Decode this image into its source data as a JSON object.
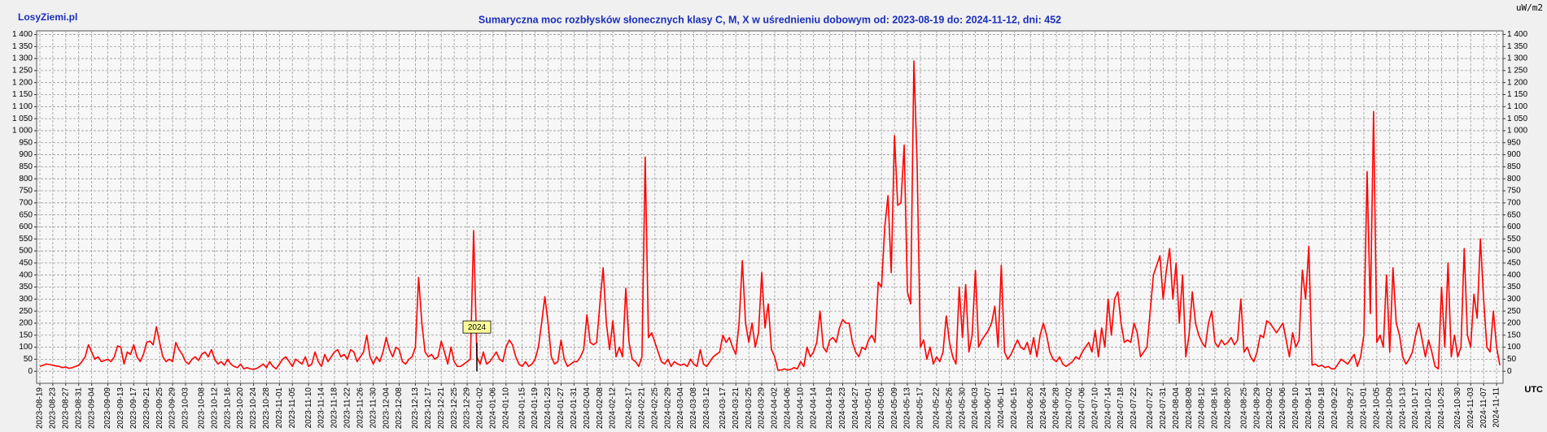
{
  "site": "LosyZiemi.pl",
  "unit": "uW/m2",
  "timezone": "UTC",
  "chart_data": {
    "type": "line",
    "title": "Sumaryczna moc rozbłysków słonecznych klasy C, M, X w uśrednieniu dobowym od: 2023-08-19 do: 2024-11-12, dni: 452",
    "annotations": [
      {
        "text": "2024",
        "x": "2024-01-01"
      }
    ],
    "xlim": [
      "2023-08-18",
      "2024-11-13"
    ],
    "ylim": [
      -50,
      1415
    ],
    "grid": true,
    "x": [
      "2023-08-19",
      "2023-08-20",
      "2023-08-21",
      "2023-08-22",
      "2023-08-23",
      "2023-08-24",
      "2023-08-25",
      "2023-08-26",
      "2023-08-27",
      "2023-08-28",
      "2023-08-29",
      "2023-08-30",
      "2023-08-31",
      "2023-09-01",
      "2023-09-02",
      "2023-09-03",
      "2023-09-04",
      "2023-09-05",
      "2023-09-06",
      "2023-09-07",
      "2023-09-08",
      "2023-09-09",
      "2023-09-10",
      "2023-09-11",
      "2023-09-12",
      "2023-09-13",
      "2023-09-14",
      "2023-09-15",
      "2023-09-16",
      "2023-09-17",
      "2023-09-18",
      "2023-09-19",
      "2023-09-20",
      "2023-09-21",
      "2023-09-22",
      "2023-09-23",
      "2023-09-24",
      "2023-09-25",
      "2023-09-26",
      "2023-09-27",
      "2023-09-28",
      "2023-09-29",
      "2023-09-30",
      "2023-10-01",
      "2023-10-02",
      "2023-10-03",
      "2023-10-04",
      "2023-10-05",
      "2023-10-06",
      "2023-10-07",
      "2023-10-08",
      "2023-10-09",
      "2023-10-10",
      "2023-10-11",
      "2023-10-12",
      "2023-10-13",
      "2023-10-14",
      "2023-10-15",
      "2023-10-16",
      "2023-10-17",
      "2023-10-18",
      "2023-10-19",
      "2023-10-20",
      "2023-10-21",
      "2023-10-22",
      "2023-10-23",
      "2023-10-24",
      "2023-10-25",
      "2023-10-26",
      "2023-10-27",
      "2023-10-28",
      "2023-10-29",
      "2023-10-30",
      "2023-10-31",
      "2023-11-01",
      "2023-11-02",
      "2023-11-03",
      "2023-11-04",
      "2023-11-05",
      "2023-11-06",
      "2023-11-07",
      "2023-11-08",
      "2023-11-09",
      "2023-11-10",
      "2023-11-11",
      "2023-11-12",
      "2023-11-13",
      "2023-11-14",
      "2023-11-15",
      "2023-11-16",
      "2023-11-17",
      "2023-11-18",
      "2023-11-19",
      "2023-11-20",
      "2023-11-21",
      "2023-11-22",
      "2023-11-23",
      "2023-11-24",
      "2023-11-25",
      "2023-11-26",
      "2023-11-27",
      "2023-11-28",
      "2023-11-29",
      "2023-11-30",
      "2023-12-01",
      "2023-12-02",
      "2023-12-03",
      "2023-12-04",
      "2023-12-05",
      "2023-12-06",
      "2023-12-07",
      "2023-12-08",
      "2023-12-09",
      "2023-12-10",
      "2023-12-11",
      "2023-12-12",
      "2023-12-13",
      "2023-12-14",
      "2023-12-15",
      "2023-12-16",
      "2023-12-17",
      "2023-12-18",
      "2023-12-19",
      "2023-12-20",
      "2023-12-21",
      "2023-12-22",
      "2023-12-23",
      "2023-12-24",
      "2023-12-25",
      "2023-12-26",
      "2023-12-27",
      "2023-12-28",
      "2023-12-29",
      "2023-12-30",
      "2023-12-31",
      "2024-01-01",
      "2024-01-02",
      "2024-01-03",
      "2024-01-04",
      "2024-01-05",
      "2024-01-06",
      "2024-01-07",
      "2024-01-08",
      "2024-01-09",
      "2024-01-10",
      "2024-01-11",
      "2024-01-12",
      "2024-01-13",
      "2024-01-14",
      "2024-01-15",
      "2024-01-16",
      "2024-01-17",
      "2024-01-18",
      "2024-01-19",
      "2024-01-20",
      "2024-01-21",
      "2024-01-22",
      "2024-01-23",
      "2024-01-24",
      "2024-01-25",
      "2024-01-26",
      "2024-01-27",
      "2024-01-28",
      "2024-01-29",
      "2024-01-30",
      "2024-01-31",
      "2024-02-01",
      "2024-02-02",
      "2024-02-03",
      "2024-02-04",
      "2024-02-05",
      "2024-02-06",
      "2024-02-07",
      "2024-02-08",
      "2024-02-09",
      "2024-02-10",
      "2024-02-11",
      "2024-02-12",
      "2024-02-13",
      "2024-02-14",
      "2024-02-15",
      "2024-02-16",
      "2024-02-17",
      "2024-02-18",
      "2024-02-19",
      "2024-02-20",
      "2024-02-21",
      "2024-02-22",
      "2024-02-23",
      "2024-02-24",
      "2024-02-25",
      "2024-02-26",
      "2024-02-27",
      "2024-02-28",
      "2024-02-29",
      "2024-03-01",
      "2024-03-02",
      "2024-03-03",
      "2024-03-04",
      "2024-03-05",
      "2024-03-06",
      "2024-03-07",
      "2024-03-08",
      "2024-03-09",
      "2024-03-10",
      "2024-03-11",
      "2024-03-12",
      "2024-03-13",
      "2024-03-14",
      "2024-03-15",
      "2024-03-16",
      "2024-03-17",
      "2024-03-18",
      "2024-03-19",
      "2024-03-20",
      "2024-03-21",
      "2024-03-22",
      "2024-03-23",
      "2024-03-24",
      "2024-03-25",
      "2024-03-26",
      "2024-03-27",
      "2024-03-28",
      "2024-03-29",
      "2024-03-30",
      "2024-03-31",
      "2024-04-01",
      "2024-04-02",
      "2024-04-03",
      "2024-04-04",
      "2024-04-05",
      "2024-04-06",
      "2024-04-07",
      "2024-04-08",
      "2024-04-09",
      "2024-04-10",
      "2024-04-11",
      "2024-04-12",
      "2024-04-13",
      "2024-04-14",
      "2024-04-15",
      "2024-04-16",
      "2024-04-17",
      "2024-04-18",
      "2024-04-19",
      "2024-04-20",
      "2024-04-21",
      "2024-04-22",
      "2024-04-23",
      "2024-04-24",
      "2024-04-25",
      "2024-04-26",
      "2024-04-27",
      "2024-04-28",
      "2024-04-29",
      "2024-04-30",
      "2024-05-01",
      "2024-05-02",
      "2024-05-03",
      "2024-05-04",
      "2024-05-05",
      "2024-05-06",
      "2024-05-07",
      "2024-05-08",
      "2024-05-09",
      "2024-05-10",
      "2024-05-11",
      "2024-05-12",
      "2024-05-13",
      "2024-05-14",
      "2024-05-15",
      "2024-05-16",
      "2024-05-17",
      "2024-05-18",
      "2024-05-19",
      "2024-05-20",
      "2024-05-21",
      "2024-05-22",
      "2024-05-23",
      "2024-05-24",
      "2024-05-25",
      "2024-05-26",
      "2024-05-27",
      "2024-05-28",
      "2024-05-29",
      "2024-05-30",
      "2024-05-31",
      "2024-06-01",
      "2024-06-02",
      "2024-06-03",
      "2024-06-04",
      "2024-06-05",
      "2024-06-06",
      "2024-06-07",
      "2024-06-08",
      "2024-06-09",
      "2024-06-10",
      "2024-06-11",
      "2024-06-12",
      "2024-06-13",
      "2024-06-14",
      "2024-06-15",
      "2024-06-16",
      "2024-06-17",
      "2024-06-18",
      "2024-06-19",
      "2024-06-20",
      "2024-06-21",
      "2024-06-22",
      "2024-06-23",
      "2024-06-24",
      "2024-06-25",
      "2024-06-26",
      "2024-06-27",
      "2024-06-28",
      "2024-06-29",
      "2024-06-30",
      "2024-07-01",
      "2024-07-02",
      "2024-07-03",
      "2024-07-04",
      "2024-07-05",
      "2024-07-06",
      "2024-07-07",
      "2024-07-08",
      "2024-07-09",
      "2024-07-10",
      "2024-07-11",
      "2024-07-12",
      "2024-07-13",
      "2024-07-14",
      "2024-07-15",
      "2024-07-16",
      "2024-07-17",
      "2024-07-18",
      "2024-07-19",
      "2024-07-20",
      "2024-07-21",
      "2024-07-22",
      "2024-07-23",
      "2024-07-24",
      "2024-07-25",
      "2024-07-26",
      "2024-07-27",
      "2024-07-28",
      "2024-07-29",
      "2024-07-30",
      "2024-07-31",
      "2024-08-01",
      "2024-08-02",
      "2024-08-03",
      "2024-08-04",
      "2024-08-05",
      "2024-08-06",
      "2024-08-07",
      "2024-08-08",
      "2024-08-09",
      "2024-08-10",
      "2024-08-11",
      "2024-08-12",
      "2024-08-13",
      "2024-08-14",
      "2024-08-15",
      "2024-08-16",
      "2024-08-17",
      "2024-08-18",
      "2024-08-19",
      "2024-08-20",
      "2024-08-21",
      "2024-08-22",
      "2024-08-23",
      "2024-08-24",
      "2024-08-25",
      "2024-08-26",
      "2024-08-27",
      "2024-08-28",
      "2024-08-29",
      "2024-08-30",
      "2024-08-31",
      "2024-09-01",
      "2024-09-02",
      "2024-09-03",
      "2024-09-04",
      "2024-09-05",
      "2024-09-06",
      "2024-09-07",
      "2024-09-08",
      "2024-09-09",
      "2024-09-10",
      "2024-09-11",
      "2024-09-12",
      "2024-09-13",
      "2024-09-14",
      "2024-09-15",
      "2024-09-16",
      "2024-09-17",
      "2024-09-18",
      "2024-09-19",
      "2024-09-20",
      "2024-09-21",
      "2024-09-22",
      "2024-09-23",
      "2024-09-24",
      "2024-09-25",
      "2024-09-26",
      "2024-09-27",
      "2024-09-28",
      "2024-09-29",
      "2024-09-30",
      "2024-10-01",
      "2024-10-02",
      "2024-10-03",
      "2024-10-04",
      "2024-10-05",
      "2024-10-06",
      "2024-10-07",
      "2024-10-08",
      "2024-10-09",
      "2024-10-10",
      "2024-10-11",
      "2024-10-12",
      "2024-10-13",
      "2024-10-14",
      "2024-10-15",
      "2024-10-16",
      "2024-10-17",
      "2024-10-18",
      "2024-10-19",
      "2024-10-20",
      "2024-10-21",
      "2024-10-22",
      "2024-10-23",
      "2024-10-24",
      "2024-10-25",
      "2024-10-26",
      "2024-10-27",
      "2024-10-28",
      "2024-10-29",
      "2024-10-30",
      "2024-10-31",
      "2024-11-01",
      "2024-11-02",
      "2024-11-03",
      "2024-11-04",
      "2024-11-05",
      "2024-11-06",
      "2024-11-07",
      "2024-11-08",
      "2024-11-09",
      "2024-11-10",
      "2024-11-11",
      "2024-11-12"
    ],
    "series": [
      {
        "color": "#ff0000",
        "values": [
          20,
          25,
          30,
          28,
          25,
          22,
          20,
          15,
          18,
          12,
          15,
          20,
          25,
          40,
          60,
          110,
          80,
          50,
          60,
          40,
          45,
          50,
          40,
          60,
          105,
          100,
          30,
          80,
          70,
          110,
          60,
          40,
          70,
          120,
          125,
          110,
          185,
          120,
          60,
          40,
          50,
          40,
          120,
          90,
          70,
          40,
          30,
          50,
          60,
          45,
          70,
          80,
          60,
          90,
          50,
          30,
          40,
          25,
          50,
          30,
          20,
          15,
          30,
          10,
          15,
          10,
          8,
          12,
          20,
          30,
          15,
          40,
          20,
          10,
          30,
          50,
          60,
          40,
          20,
          50,
          40,
          30,
          60,
          20,
          30,
          80,
          40,
          20,
          70,
          40,
          60,
          80,
          90,
          60,
          70,
          50,
          90,
          80,
          40,
          60,
          80,
          150,
          60,
          30,
          60,
          40,
          80,
          140,
          90,
          60,
          100,
          90,
          40,
          30,
          50,
          60,
          100,
          390,
          200,
          80,
          60,
          70,
          50,
          60,
          125,
          80,
          30,
          100,
          40,
          20,
          20,
          30,
          40,
          50,
          585,
          60,
          30,
          80,
          30,
          40,
          60,
          80,
          50,
          40,
          100,
          130,
          110,
          60,
          30,
          20,
          40,
          20,
          30,
          50,
          100,
          200,
          310,
          200,
          60,
          30,
          40,
          130,
          50,
          20,
          30,
          40,
          40,
          60,
          90,
          235,
          120,
          110,
          120,
          280,
          430,
          200,
          90,
          210,
          60,
          100,
          60,
          345,
          120,
          50,
          40,
          20,
          60,
          890,
          140,
          160,
          120,
          80,
          40,
          30,
          50,
          20,
          40,
          30,
          25,
          30,
          20,
          50,
          30,
          20,
          90,
          30,
          20,
          40,
          60,
          70,
          80,
          150,
          120,
          140,
          100,
          70,
          200,
          460,
          200,
          120,
          200,
          100,
          160,
          410,
          180,
          280,
          90,
          60,
          5,
          5,
          10,
          5,
          8,
          15,
          10,
          40,
          20,
          100,
          60,
          80,
          120,
          250,
          100,
          80,
          130,
          140,
          120,
          180,
          215,
          200,
          200,
          120,
          80,
          60,
          100,
          90,
          130,
          150,
          120,
          370,
          350,
          600,
          730,
          410,
          980,
          690,
          700,
          940,
          330,
          280,
          1290,
          860,
          100,
          130,
          50,
          100,
          30,
          60,
          40,
          80,
          230,
          120,
          60,
          30,
          350,
          140,
          360,
          80,
          150,
          420,
          100,
          130,
          150,
          170,
          200,
          270,
          100,
          440,
          80,
          50,
          70,
          100,
          130,
          100,
          90,
          120,
          70,
          140,
          60,
          150,
          200,
          150,
          80,
          50,
          40,
          60,
          30,
          20,
          30,
          40,
          60,
          50,
          80,
          100,
          120,
          80,
          170,
          60,
          180,
          100,
          300,
          150,
          300,
          330,
          200,
          120,
          130,
          120,
          200,
          160,
          60,
          80,
          100,
          250,
          400,
          440,
          480,
          300,
          420,
          510,
          300,
          450,
          200,
          400,
          60,
          150,
          330,
          200,
          150,
          120,
          100,
          200,
          250,
          120,
          100,
          130,
          110,
          120,
          140,
          110,
          130,
          300,
          80,
          100,
          60,
          40,
          80,
          150,
          140,
          210,
          200,
          180,
          160,
          180,
          200,
          130,
          60,
          160,
          100,
          130,
          420,
          300,
          520,
          25,
          30,
          20,
          25,
          15,
          20,
          10,
          10,
          30,
          50,
          40,
          30,
          50,
          70,
          20,
          60,
          150,
          830,
          240,
          1080,
          120,
          150,
          100,
          400,
          80,
          430,
          200,
          150,
          60,
          30,
          50,
          80,
          150,
          200,
          130,
          60,
          130,
          80,
          20,
          10,
          350,
          100,
          450,
          60,
          150,
          60,
          100,
          510,
          150,
          100,
          320,
          220,
          550,
          300,
          100,
          80,
          250,
          100,
          25
        ]
      }
    ],
    "yticks": [
      0,
      50,
      100,
      150,
      200,
      250,
      300,
      350,
      400,
      450,
      500,
      550,
      600,
      650,
      700,
      750,
      800,
      850,
      900,
      950,
      {
        "value": 1000,
        "label": "1 000"
      },
      {
        "value": 1050,
        "label": "1 050"
      },
      {
        "value": 1100,
        "label": "1 100"
      },
      {
        "value": 1150,
        "label": "1 150"
      },
      {
        "value": 1200,
        "label": "1 200"
      },
      {
        "value": 1250,
        "label": "1 250"
      },
      {
        "value": 1300,
        "label": "1 300"
      },
      {
        "value": 1350,
        "label": "1 350"
      },
      {
        "value": 1400,
        "label": "1 400"
      }
    ],
    "xticks": [
      "2023-08-19",
      "2023-08-23",
      "2023-08-27",
      "2023-08-31",
      "2023-09-04",
      "2023-09-09",
      "2023-09-13",
      "2023-09-17",
      "2023-09-21",
      "2023-09-25",
      "2023-09-29",
      "2023-10-03",
      "2023-10-08",
      "2023-10-12",
      "2023-10-16",
      "2023-10-20",
      "2023-10-24",
      "2023-10-28",
      "2023-11-01",
      "2023-11-05",
      "2023-11-10",
      "2023-11-14",
      "2023-11-18",
      "2023-11-22",
      "2023-11-26",
      "2023-11-30",
      "2023-12-04",
      "2023-12-08",
      "2023-12-13",
      "2023-12-17",
      "2023-12-21",
      "2023-12-25",
      "2023-12-29",
      "2024-01-02",
      "2024-01-06",
      "2024-01-10",
      "2024-01-15",
      "2024-01-19",
      "2024-01-23",
      "2024-01-27",
      "2024-01-31",
      "2024-02-04",
      "2024-02-08",
      "2024-02-12",
      "2024-02-17",
      "2024-02-21",
      "2024-02-25",
      "2024-02-29",
      "2024-03-04",
      "2024-03-08",
      "2024-03-12",
      "2024-03-17",
      "2024-03-21",
      "2024-03-25",
      "2024-03-29",
      "2024-04-02",
      "2024-04-06",
      "2024-04-10",
      "2024-04-14",
      "2024-04-19",
      "2024-04-23",
      "2024-04-27",
      "2024-05-01",
      "2024-05-05",
      "2024-05-09",
      "2024-05-13",
      "2024-05-17",
      "2024-05-22",
      "2024-05-26",
      "2024-05-30",
      "2024-06-03",
      "2024-06-07",
      "2024-06-11",
      "2024-06-15",
      "2024-06-20",
      "2024-06-24",
      "2024-06-28",
      "2024-07-02",
      "2024-07-06",
      "2024-07-10",
      "2024-07-14",
      "2024-07-18",
      "2024-07-22",
      "2024-07-27",
      "2024-07-31",
      "2024-08-04",
      "2024-08-08",
      "2024-08-12",
      "2024-08-16",
      "2024-08-20",
      "2024-08-25",
      "2024-08-29",
      "2024-09-02",
      "2024-09-06",
      "2024-09-10",
      "2024-09-14",
      "2024-09-18",
      "2024-09-22",
      "2024-09-27",
      "2024-10-01",
      "2024-10-05",
      "2024-10-09",
      "2024-10-13",
      "2024-10-17",
      "2024-10-21",
      "2024-10-25",
      "2024-10-30",
      "2024-11-03",
      "2024-11-07",
      "2024-11-11"
    ]
  }
}
